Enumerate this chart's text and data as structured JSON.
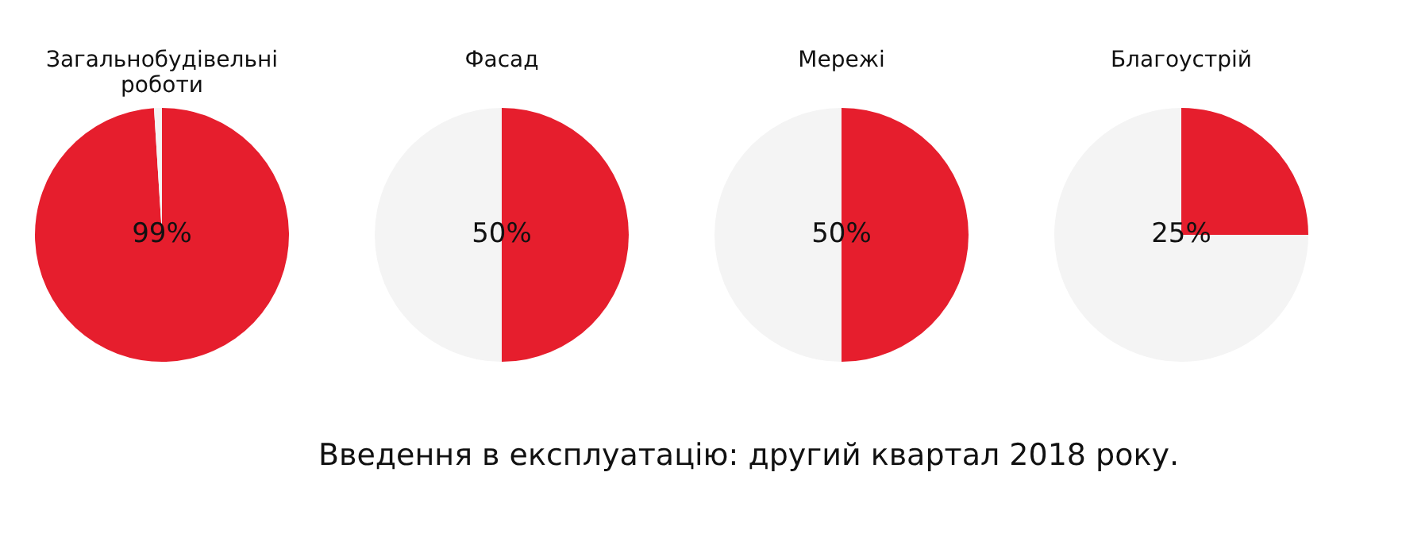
{
  "chart_data": [
    {
      "type": "pie",
      "title": "Загальнобудівельні роботи",
      "categories": [
        null,
        null
      ],
      "values": [
        99,
        1
      ],
      "colors": [
        "#e61e2d",
        "#f4f4f4"
      ],
      "value_labels": [
        "99%",
        null
      ]
    },
    {
      "type": "pie",
      "title": "Фасад",
      "categories": [
        null,
        null
      ],
      "values": [
        50,
        50
      ],
      "colors": [
        "#e61e2d",
        "#f4f4f4"
      ],
      "value_labels": [
        "50%",
        null
      ]
    },
    {
      "type": "pie",
      "title": "Мережі",
      "categories": [
        null,
        null
      ],
      "values": [
        50,
        50
      ],
      "colors": [
        "#e61e2d",
        "#f4f4f4"
      ],
      "value_labels": [
        "50%",
        null
      ]
    },
    {
      "type": "pie",
      "title": "Благоустрій",
      "categories": [
        null,
        null
      ],
      "values": [
        25,
        75
      ],
      "colors": [
        "#e61e2d",
        "#f4f4f4"
      ],
      "value_labels": [
        "25%",
        null
      ]
    },
    {
      "type": "other",
      "annotations": [
        "Введення в експлуатацію: другий квартал 2018 року."
      ]
    }
  ]
}
